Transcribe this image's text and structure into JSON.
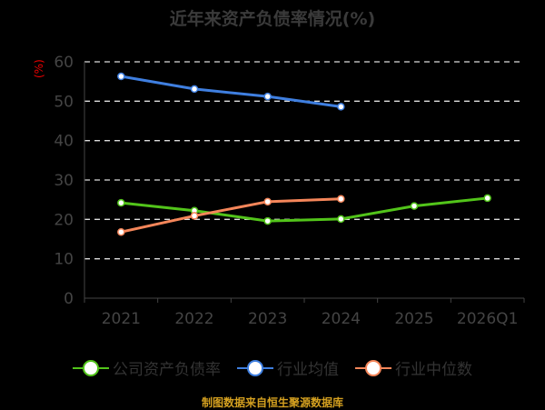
{
  "chart_data": {
    "type": "line",
    "title": "近年来资产负债率情况(%)",
    "ylabel": "(%)",
    "xlabel": "",
    "ylim": [
      0,
      60
    ],
    "yticks": [
      0,
      10,
      20,
      30,
      40,
      50,
      60
    ],
    "categories": [
      "2021",
      "2022",
      "2023",
      "2024",
      "2025",
      "2026Q1"
    ],
    "grid": true,
    "legend_position": "bottom",
    "series": [
      {
        "name": "公司资产负债率",
        "color": "#52c41a",
        "values": [
          24.2,
          22.2,
          19.6,
          20.1,
          23.4,
          25.4
        ]
      },
      {
        "name": "行业均值",
        "color": "#3f7fe0",
        "values": [
          56.3,
          53.1,
          51.2,
          48.6,
          null,
          null
        ]
      },
      {
        "name": "行业中位数",
        "color": "#f5865a",
        "values": [
          16.8,
          20.9,
          24.5,
          25.2,
          null,
          null
        ]
      }
    ],
    "source": "制图数据来自恒生聚源数据库"
  }
}
